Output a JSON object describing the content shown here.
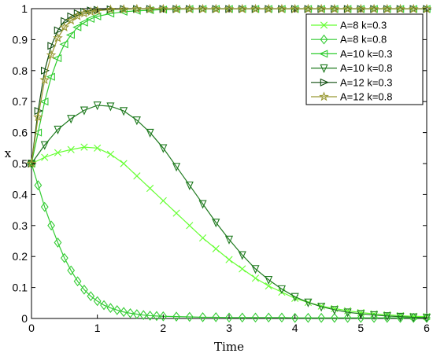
{
  "chart_data": {
    "type": "line",
    "title": "",
    "xlabel": "Time",
    "ylabel": "x",
    "xlim": [
      0,
      6
    ],
    "ylim": [
      0,
      1
    ],
    "xticks": [
      "0",
      "1",
      "2",
      "3",
      "4",
      "5",
      "6"
    ],
    "yticks": [
      "0",
      "0.1",
      "0.2",
      "0.3",
      "0.4",
      "0.5",
      "0.6",
      "0.7",
      "0.8",
      "0.9",
      "1"
    ],
    "grid": false,
    "legend_position": "top-right",
    "series": [
      {
        "name": "A=8 k=0.3",
        "color": "#66ff33",
        "marker": "x",
        "x": [
          0,
          0.2,
          0.4,
          0.6,
          0.8,
          1.0,
          1.2,
          1.4,
          1.6,
          1.8,
          2.0,
          2.2,
          2.4,
          2.6,
          2.8,
          3.0,
          3.2,
          3.4,
          3.6,
          3.8,
          4.0,
          4.2,
          4.4,
          4.6,
          4.8,
          5.0,
          5.2,
          5.4,
          5.6,
          5.8,
          6.0
        ],
        "y": [
          0.5,
          0.52,
          0.535,
          0.545,
          0.553,
          0.55,
          0.53,
          0.5,
          0.46,
          0.42,
          0.38,
          0.34,
          0.3,
          0.26,
          0.225,
          0.19,
          0.16,
          0.13,
          0.105,
          0.085,
          0.065,
          0.052,
          0.04,
          0.032,
          0.025,
          0.019,
          0.015,
          0.012,
          0.009,
          0.007,
          0.006
        ]
      },
      {
        "name": "A=8 k=0.8",
        "color": "#33cc33",
        "marker": "diamond",
        "x": [
          0,
          0.1,
          0.2,
          0.3,
          0.4,
          0.5,
          0.6,
          0.7,
          0.8,
          0.9,
          1.0,
          1.1,
          1.2,
          1.3,
          1.4,
          1.5,
          1.6,
          1.7,
          1.8,
          1.9,
          2.0,
          2.2,
          2.4,
          2.6,
          2.8,
          3.0,
          3.2,
          3.4,
          3.6,
          3.8,
          4.0,
          4.2,
          4.4,
          4.6,
          4.8,
          5.0,
          5.2,
          5.4,
          5.6,
          5.8,
          6.0
        ],
        "y": [
          0.5,
          0.43,
          0.36,
          0.3,
          0.245,
          0.195,
          0.155,
          0.12,
          0.093,
          0.072,
          0.056,
          0.043,
          0.034,
          0.027,
          0.021,
          0.017,
          0.014,
          0.011,
          0.009,
          0.008,
          0.007,
          0.006,
          0.005,
          0.004,
          0.004,
          0.003,
          0.003,
          0.003,
          0.003,
          0.003,
          0.002,
          0.002,
          0.002,
          0.002,
          0.002,
          0.002,
          0.002,
          0.002,
          0.002,
          0.002,
          0.002
        ]
      },
      {
        "name": "A=10 k=0.3",
        "color": "#2ecc2e",
        "marker": "triangle-left",
        "x": [
          0,
          0.1,
          0.2,
          0.3,
          0.4,
          0.5,
          0.6,
          0.7,
          0.8,
          0.9,
          1.0,
          1.2,
          1.4,
          1.6,
          1.8,
          2.0,
          2.2,
          2.4,
          2.6,
          2.8,
          3.0,
          3.2,
          3.4,
          3.6,
          3.8,
          4.0,
          4.2,
          4.4,
          4.6,
          4.8,
          5.0,
          5.2,
          5.4,
          5.6,
          5.8,
          6.0
        ],
        "y": [
          0.5,
          0.6,
          0.7,
          0.78,
          0.84,
          0.885,
          0.915,
          0.94,
          0.955,
          0.967,
          0.975,
          0.984,
          0.99,
          0.993,
          0.995,
          0.997,
          0.998,
          0.999,
          0.999,
          0.999,
          0.999,
          0.999,
          0.999,
          0.999,
          0.999,
          0.999,
          0.999,
          0.999,
          0.999,
          0.999,
          0.999,
          0.999,
          0.999,
          0.999,
          0.999,
          0.999
        ]
      },
      {
        "name": "A=10 k=0.8",
        "color": "#1f7a1f",
        "marker": "triangle-down",
        "x": [
          0,
          0.2,
          0.4,
          0.6,
          0.8,
          1.0,
          1.2,
          1.4,
          1.6,
          1.8,
          2.0,
          2.2,
          2.4,
          2.6,
          2.8,
          3.0,
          3.2,
          3.4,
          3.6,
          3.8,
          4.0,
          4.2,
          4.4,
          4.6,
          4.8,
          5.0,
          5.2,
          5.4,
          5.6,
          5.8,
          6.0
        ],
        "y": [
          0.5,
          0.56,
          0.61,
          0.645,
          0.672,
          0.688,
          0.685,
          0.67,
          0.64,
          0.6,
          0.55,
          0.49,
          0.43,
          0.37,
          0.31,
          0.255,
          0.205,
          0.16,
          0.125,
          0.095,
          0.07,
          0.052,
          0.038,
          0.028,
          0.02,
          0.015,
          0.011,
          0.008,
          0.006,
          0.004,
          0.003
        ]
      },
      {
        "name": "A=12 k=0.3",
        "color": "#0f4d0f",
        "marker": "triangle-right",
        "x": [
          0,
          0.1,
          0.2,
          0.3,
          0.4,
          0.5,
          0.6,
          0.7,
          0.8,
          0.9,
          1.0,
          1.2,
          1.4,
          1.6,
          1.8,
          2.0,
          2.2,
          2.4,
          2.6,
          2.8,
          3.0,
          3.2,
          3.4,
          3.6,
          3.8,
          4.0,
          4.2,
          4.4,
          4.6,
          4.8,
          5.0,
          5.2,
          5.4,
          5.6,
          5.8,
          6.0
        ],
        "y": [
          0.5,
          0.67,
          0.8,
          0.88,
          0.93,
          0.96,
          0.975,
          0.985,
          0.99,
          0.994,
          0.996,
          0.998,
          0.999,
          0.999,
          0.999,
          0.999,
          0.999,
          0.999,
          0.999,
          0.999,
          0.999,
          0.999,
          0.999,
          0.999,
          0.999,
          0.999,
          0.999,
          0.999,
          0.999,
          0.999,
          0.999,
          0.999,
          0.999,
          0.999,
          0.999,
          0.999
        ]
      },
      {
        "name": "A=12 k=0.8",
        "color": "#999933",
        "marker": "star",
        "x": [
          0,
          0.1,
          0.2,
          0.3,
          0.4,
          0.5,
          0.6,
          0.7,
          0.8,
          0.9,
          1.0,
          1.2,
          1.4,
          1.6,
          1.8,
          2.0,
          2.2,
          2.4,
          2.6,
          2.8,
          3.0,
          3.2,
          3.4,
          3.6,
          3.8,
          4.0,
          4.2,
          4.4,
          4.6,
          4.8,
          5.0,
          5.2,
          5.4,
          5.6,
          5.8,
          6.0
        ],
        "y": [
          0.5,
          0.65,
          0.77,
          0.85,
          0.905,
          0.94,
          0.962,
          0.976,
          0.985,
          0.99,
          0.993,
          0.997,
          0.998,
          0.999,
          0.999,
          0.999,
          0.999,
          0.999,
          0.999,
          0.999,
          0.999,
          0.999,
          0.999,
          0.999,
          0.999,
          0.999,
          0.999,
          0.999,
          0.999,
          0.999,
          0.999,
          0.999,
          0.999,
          0.999,
          0.999,
          0.999
        ]
      }
    ]
  }
}
